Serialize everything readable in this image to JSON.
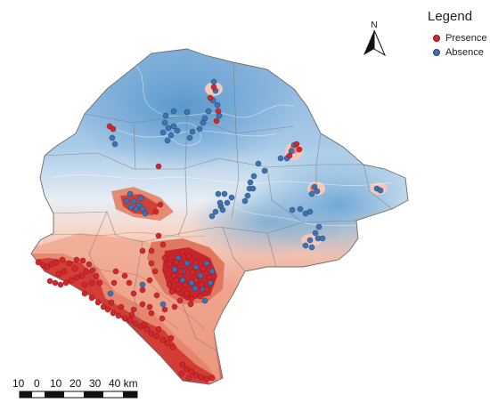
{
  "legend": {
    "title": "Legend",
    "items": [
      {
        "label": "Presence",
        "color": "#d7262b"
      },
      {
        "label": "Absence",
        "color": "#3d72b4"
      }
    ]
  },
  "north_arrow": {
    "label": "N"
  },
  "scale_bar": {
    "labels": [
      "10",
      "0",
      "10",
      "20",
      "30",
      "40 km"
    ]
  },
  "colors": {
    "presence": "#d7262b",
    "absence": "#3d72b4",
    "high_suitability": "#c8242c",
    "low_suitability": "#2f79b9"
  }
}
